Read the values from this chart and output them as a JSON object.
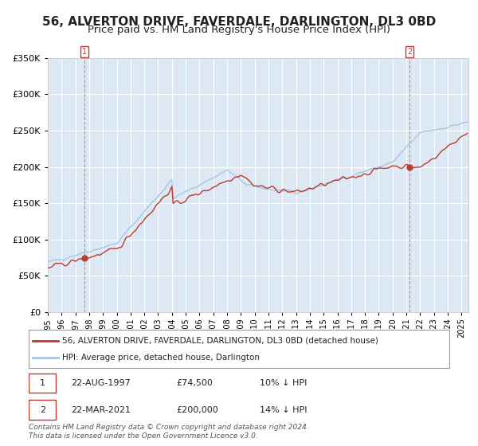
{
  "title": "56, ALVERTON DRIVE, FAVERDALE, DARLINGTON, DL3 0BD",
  "subtitle": "Price paid vs. HM Land Registry's House Price Index (HPI)",
  "legend_line1": "56, ALVERTON DRIVE, FAVERDALE, DARLINGTON, DL3 0BD (detached house)",
  "legend_line2": "HPI: Average price, detached house, Darlington",
  "annotation1_date": "22-AUG-1997",
  "annotation1_price": "£74,500",
  "annotation1_hpi": "10% ↓ HPI",
  "annotation2_date": "22-MAR-2021",
  "annotation2_price": "£200,000",
  "annotation2_hpi": "14% ↓ HPI",
  "point1_year": 1997.64,
  "point1_value": 74500,
  "point2_year": 2021.22,
  "point2_value": 200000,
  "xmin": 1995.0,
  "xmax": 2025.5,
  "ymin": 0,
  "ymax": 350000,
  "hpi_color": "#a8c4e0",
  "price_color": "#c0392b",
  "bg_color": "#dce9f5",
  "plot_bg": "#dce9f5",
  "grid_color": "#ffffff",
  "dashed_line_color": "#999999",
  "copyright_text": "Contains HM Land Registry data © Crown copyright and database right 2024.\nThis data is licensed under the Open Government Licence v3.0.",
  "title_fontsize": 11,
  "subtitle_fontsize": 9.5
}
